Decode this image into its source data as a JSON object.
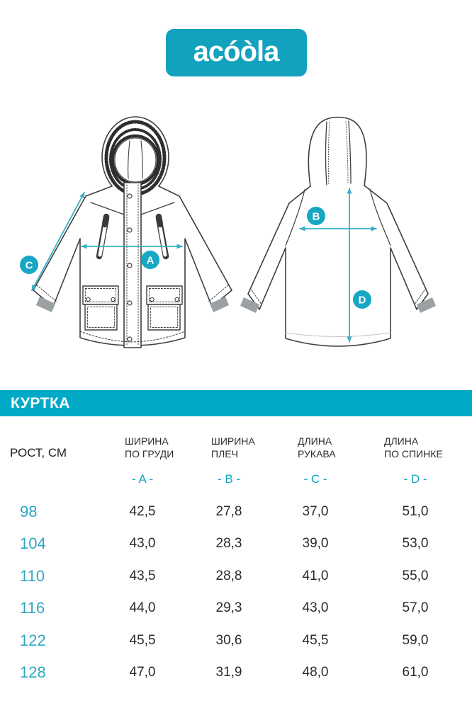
{
  "brand": {
    "logo_text": "acóòla"
  },
  "banner": {
    "title": "КУРТКА"
  },
  "colors": {
    "accent_teal": "#00a9c6",
    "logo_teal": "#13a2bd",
    "arrow_teal": "#38afc9",
    "circle_teal": "#17a7c4",
    "size_text_teal": "#2da7c2",
    "drawing_line": "#3f3f3f",
    "cuff_gray": "#9aa0a3"
  },
  "diagram": {
    "labels": {
      "a": "A",
      "b": "B",
      "c": "C",
      "d": "D"
    },
    "views": [
      "front",
      "back"
    ]
  },
  "table": {
    "size_header": "РОСТ, СМ",
    "columns": [
      {
        "line1": "ШИРИНА",
        "line2": "ПО ГРУДИ",
        "letter": "- A -"
      },
      {
        "line1": "ШИРИНА",
        "line2": "ПЛЕЧ",
        "letter": "- B -"
      },
      {
        "line1": "ДЛИНА",
        "line2": "РУКАВА",
        "letter": "- C -"
      },
      {
        "line1": "ДЛИНА",
        "line2": "ПО СПИНКЕ",
        "letter": "- D -"
      }
    ],
    "rows": [
      {
        "size": "98",
        "values": [
          "42,5",
          "27,8",
          "37,0",
          "51,0"
        ]
      },
      {
        "size": "104",
        "values": [
          "43,0",
          "28,3",
          "39,0",
          "53,0"
        ]
      },
      {
        "size": "110",
        "values": [
          "43,5",
          "28,8",
          "41,0",
          "55,0"
        ]
      },
      {
        "size": "116",
        "values": [
          "44,0",
          "29,3",
          "43,0",
          "57,0"
        ]
      },
      {
        "size": "122",
        "values": [
          "45,5",
          "30,6",
          "45,5",
          "59,0"
        ]
      },
      {
        "size": "128",
        "values": [
          "47,0",
          "31,9",
          "48,0",
          "61,0"
        ]
      }
    ]
  }
}
